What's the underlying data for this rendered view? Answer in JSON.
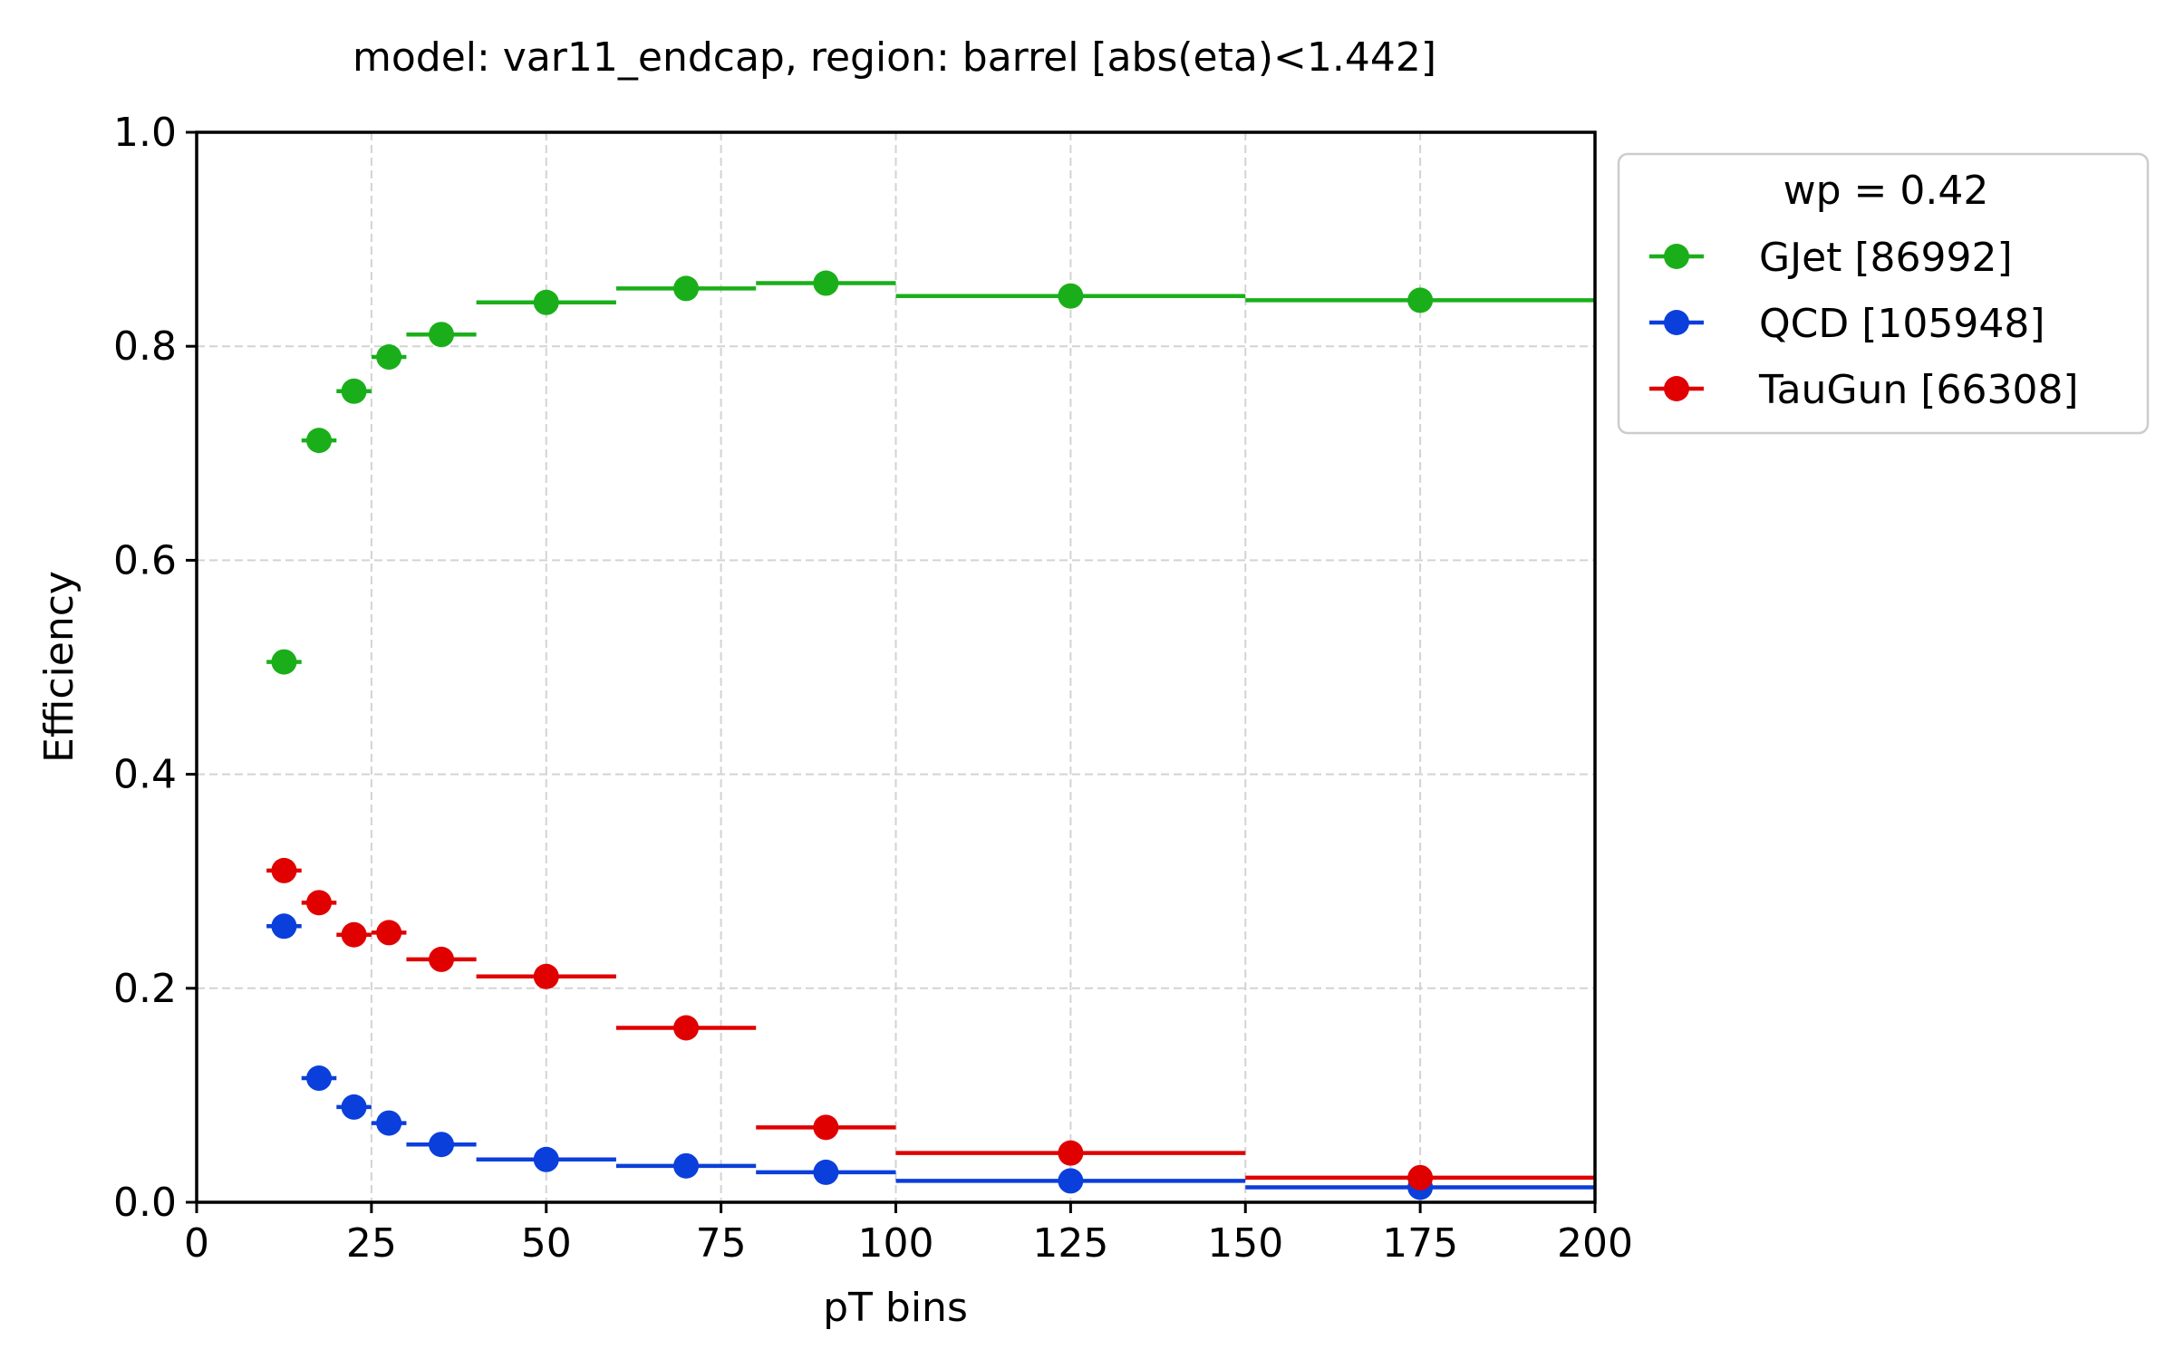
{
  "chart_data": {
    "type": "scatter",
    "title": "model: var11_endcap, region: barrel [abs(eta)<1.442]",
    "xlabel": "pT bins",
    "ylabel": "Efficiency",
    "xlim": [
      0,
      200
    ],
    "ylim": [
      0,
      1.0
    ],
    "xticks": [
      "0",
      "25",
      "50",
      "75",
      "100",
      "125",
      "150",
      "175",
      "200"
    ],
    "yticks": [
      "0.0",
      "0.2",
      "0.4",
      "0.6",
      "0.8",
      "1.0"
    ],
    "grid": true,
    "legend": {
      "title": "wp = 0.42",
      "placement": "outside-top-right"
    },
    "bins": [
      [
        10,
        15
      ],
      [
        15,
        20
      ],
      [
        20,
        25
      ],
      [
        25,
        30
      ],
      [
        30,
        40
      ],
      [
        40,
        60
      ],
      [
        60,
        80
      ],
      [
        80,
        100
      ],
      [
        100,
        150
      ],
      [
        150,
        200
      ]
    ],
    "x": [
      12.5,
      17.5,
      22.5,
      27.5,
      35,
      50,
      70,
      90,
      125,
      175
    ],
    "series": [
      {
        "name": "GJet [86992]",
        "color": "#1aaf1a",
        "values": [
          0.505,
          0.712,
          0.758,
          0.79,
          0.811,
          0.841,
          0.854,
          0.859,
          0.847,
          0.843
        ]
      },
      {
        "name": "QCD [105948]",
        "color": "#0b3fdb",
        "values": [
          0.258,
          0.116,
          0.089,
          0.074,
          0.054,
          0.04,
          0.034,
          0.028,
          0.02,
          0.014
        ]
      },
      {
        "name": "TauGun [66308]",
        "color": "#e00000",
        "values": [
          0.31,
          0.28,
          0.25,
          0.252,
          0.227,
          0.211,
          0.163,
          0.07,
          0.046,
          0.023
        ]
      }
    ]
  }
}
